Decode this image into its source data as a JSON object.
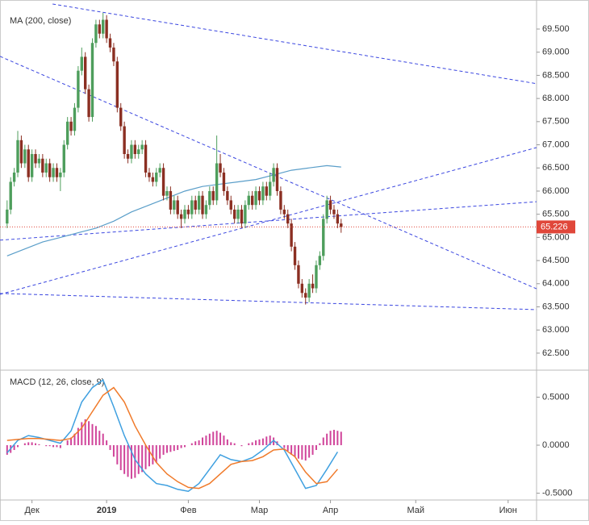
{
  "chart_data": [
    {
      "type": "candlestick",
      "title": "MA (200, close)",
      "up_color": "#4e9e5c",
      "down_color": "#8b2f22",
      "xlim": [
        -2,
        149
      ],
      "ylim": [
        62.15,
        70.04
      ],
      "yticks": [
        {
          "value": 62.5,
          "label": "62.500"
        },
        {
          "value": 63,
          "label": "63.000"
        },
        {
          "value": 63.5,
          "label": "63.500"
        },
        {
          "value": 64,
          "label": "64.000"
        },
        {
          "value": 64.5,
          "label": "64.500"
        },
        {
          "value": 65,
          "label": "65.000"
        },
        {
          "value": 65.5,
          "label": "65.500"
        },
        {
          "value": 66,
          "label": "66.000"
        },
        {
          "value": 66.5,
          "label": "66.500"
        },
        {
          "value": 67,
          "label": "67.000"
        },
        {
          "value": 67.5,
          "label": "67.500"
        },
        {
          "value": 68,
          "label": "68.000"
        },
        {
          "value": 68.5,
          "label": "68.500"
        },
        {
          "value": 69,
          "label": "69.000"
        },
        {
          "value": 69.5,
          "label": "69.500"
        }
      ],
      "ohlc": [
        [
          65.3,
          65.8,
          65.2,
          65.6
        ],
        [
          65.6,
          66.3,
          65.5,
          66.2
        ],
        [
          66.2,
          66.5,
          66.1,
          66.4
        ],
        [
          66.4,
          67.3,
          66.3,
          67.1
        ],
        [
          67.1,
          67.2,
          66.5,
          66.6
        ],
        [
          66.6,
          67.0,
          66.5,
          66.9
        ],
        [
          66.9,
          67.0,
          66.2,
          66.3
        ],
        [
          66.3,
          66.9,
          66.2,
          66.8
        ],
        [
          66.8,
          66.9,
          66.5,
          66.6
        ],
        [
          66.6,
          66.8,
          66.5,
          66.7
        ],
        [
          66.7,
          66.8,
          66.3,
          66.4
        ],
        [
          66.4,
          66.7,
          66.3,
          66.6
        ],
        [
          66.6,
          66.7,
          66.2,
          66.3
        ],
        [
          66.3,
          66.6,
          66.2,
          66.5
        ],
        [
          66.5,
          66.6,
          66.2,
          66.3
        ],
        [
          66.3,
          66.5,
          66.0,
          66.4
        ],
        [
          66.4,
          67.1,
          66.3,
          67.0
        ],
        [
          67.0,
          67.6,
          66.9,
          67.5
        ],
        [
          67.5,
          67.6,
          67.2,
          67.3
        ],
        [
          67.3,
          67.9,
          67.2,
          67.8
        ],
        [
          67.8,
          68.7,
          67.7,
          68.6
        ],
        [
          68.6,
          69.1,
          68.5,
          68.9
        ],
        [
          68.9,
          69.0,
          68.1,
          68.2
        ],
        [
          68.2,
          68.3,
          67.5,
          67.6
        ],
        [
          67.6,
          69.3,
          67.5,
          69.2
        ],
        [
          69.2,
          69.7,
          69.1,
          69.6
        ],
        [
          69.6,
          69.7,
          69.3,
          69.4
        ],
        [
          69.4,
          69.85,
          69.3,
          69.7
        ],
        [
          69.7,
          69.8,
          69.2,
          69.3
        ],
        [
          69.3,
          69.4,
          69.0,
          69.1
        ],
        [
          69.1,
          69.2,
          68.7,
          68.8
        ],
        [
          68.8,
          68.9,
          67.7,
          67.8
        ],
        [
          67.8,
          67.9,
          67.3,
          67.4
        ],
        [
          67.4,
          67.5,
          66.7,
          66.8
        ],
        [
          66.8,
          66.9,
          66.6,
          66.7
        ],
        [
          66.7,
          67.1,
          66.6,
          67.0
        ],
        [
          67.0,
          67.1,
          66.7,
          66.8
        ],
        [
          66.8,
          67.0,
          66.7,
          66.9
        ],
        [
          66.9,
          67.1,
          66.8,
          67.0
        ],
        [
          67.0,
          67.1,
          66.3,
          66.4
        ],
        [
          66.4,
          66.5,
          66.2,
          66.3
        ],
        [
          66.3,
          66.4,
          66.1,
          66.2
        ],
        [
          66.2,
          66.5,
          66.1,
          66.4
        ],
        [
          66.4,
          66.6,
          66.3,
          66.5
        ],
        [
          66.5,
          66.6,
          65.8,
          65.9
        ],
        [
          65.9,
          66.1,
          65.8,
          66.0
        ],
        [
          66.0,
          66.1,
          65.5,
          65.6
        ],
        [
          65.6,
          65.9,
          65.5,
          65.8
        ],
        [
          65.8,
          65.9,
          65.4,
          65.5
        ],
        [
          65.5,
          65.6,
          65.2,
          65.4
        ],
        [
          65.4,
          65.7,
          65.3,
          65.6
        ],
        [
          65.6,
          65.7,
          65.4,
          65.5
        ],
        [
          65.5,
          65.9,
          65.4,
          65.8
        ],
        [
          65.8,
          65.9,
          65.5,
          65.6
        ],
        [
          65.6,
          66.0,
          65.5,
          65.9
        ],
        [
          65.9,
          66.0,
          65.4,
          65.5
        ],
        [
          65.5,
          65.8,
          65.4,
          65.7
        ],
        [
          65.7,
          66.1,
          65.6,
          66.0
        ],
        [
          66.0,
          66.1,
          65.7,
          65.8
        ],
        [
          65.8,
          67.2,
          65.7,
          66.6
        ],
        [
          66.6,
          66.8,
          66.3,
          66.4
        ],
        [
          66.4,
          66.5,
          65.9,
          66.0
        ],
        [
          66.0,
          66.1,
          65.7,
          65.8
        ],
        [
          65.8,
          65.9,
          65.5,
          65.6
        ],
        [
          65.6,
          65.7,
          65.3,
          65.4
        ],
        [
          65.4,
          65.7,
          65.3,
          65.6
        ],
        [
          65.6,
          65.7,
          65.2,
          65.3
        ],
        [
          65.3,
          65.8,
          65.2,
          65.7
        ],
        [
          65.7,
          66.0,
          65.6,
          65.9
        ],
        [
          65.9,
          66.0,
          65.6,
          65.7
        ],
        [
          65.7,
          66.1,
          65.6,
          66.0
        ],
        [
          66.0,
          66.1,
          65.7,
          65.8
        ],
        [
          65.8,
          66.2,
          65.7,
          66.1
        ],
        [
          66.1,
          66.2,
          65.8,
          65.9
        ],
        [
          65.9,
          66.4,
          65.8,
          66.2
        ],
        [
          66.2,
          66.6,
          66.1,
          66.5
        ],
        [
          66.5,
          66.6,
          65.9,
          66.0
        ],
        [
          66.0,
          66.1,
          65.5,
          65.6
        ],
        [
          65.6,
          65.7,
          65.4,
          65.5
        ],
        [
          65.5,
          65.6,
          65.2,
          65.3
        ],
        [
          65.3,
          65.4,
          64.7,
          64.8
        ],
        [
          64.8,
          64.9,
          64.3,
          64.4
        ],
        [
          64.4,
          64.5,
          63.9,
          64.0
        ],
        [
          64.0,
          64.1,
          63.7,
          63.8
        ],
        [
          63.8,
          63.9,
          63.55,
          63.7
        ],
        [
          63.7,
          64.1,
          63.6,
          64.0
        ],
        [
          64.0,
          64.2,
          63.8,
          63.9
        ],
        [
          63.9,
          64.5,
          63.8,
          64.4
        ],
        [
          64.4,
          64.7,
          64.3,
          64.6
        ],
        [
          64.6,
          65.5,
          64.5,
          65.4
        ],
        [
          65.4,
          65.9,
          65.3,
          65.8
        ],
        [
          65.8,
          65.9,
          65.5,
          65.6
        ],
        [
          65.6,
          65.7,
          65.4,
          65.5
        ],
        [
          65.5,
          65.6,
          65.2,
          65.3
        ],
        [
          65.3,
          65.4,
          65.1,
          65.226
        ]
      ],
      "ma": {
        "color": "#5a9ec9",
        "x": [
          0,
          5,
          10,
          15,
          20,
          25,
          30,
          35,
          40,
          45,
          50,
          55,
          60,
          65,
          70,
          75,
          80,
          85,
          90,
          94
        ],
        "values": [
          64.6,
          64.75,
          64.9,
          65.0,
          65.1,
          65.2,
          65.35,
          65.55,
          65.7,
          65.85,
          66.0,
          66.1,
          66.15,
          66.2,
          66.25,
          66.35,
          66.45,
          66.5,
          66.55,
          66.52
        ]
      },
      "trendline_color": "#3a46e0",
      "trendlines": [
        {
          "x": [
            12.8,
            149
          ],
          "values": [
            70.04,
            68.32
          ]
        },
        {
          "x": [
            -2,
            149
          ],
          "values": [
            68.91,
            63.89
          ]
        },
        {
          "x": [
            -2,
            149
          ],
          "values": [
            64.94,
            65.77
          ]
        },
        {
          "x": [
            -2,
            149
          ],
          "values": [
            63.77,
            66.94
          ]
        },
        {
          "x": [
            -2,
            149
          ],
          "values": [
            63.79,
            63.44
          ]
        }
      ],
      "last_price_color": "#e0473a"
    },
    {
      "type": "macd",
      "title": "MACD (12, 26, close, 9)",
      "xlim": [
        -2,
        149
      ],
      "ylim": [
        -0.571,
        0.773
      ],
      "yticks": [
        {
          "value": -0.5,
          "label": "-0.5000"
        },
        {
          "value": 0,
          "label": "0.0000"
        },
        {
          "value": 0.5,
          "label": "0.5000"
        }
      ],
      "xticks": [
        {
          "value": 7,
          "label": "Дек"
        },
        {
          "value": 28,
          "label": "2019"
        },
        {
          "value": 51,
          "label": "Фев"
        },
        {
          "value": 71,
          "label": "Мар"
        },
        {
          "value": 91,
          "label": "Апр"
        },
        {
          "value": 115,
          "label": "Май"
        },
        {
          "value": 141,
          "label": "Июн"
        }
      ],
      "histogram": {
        "color": "#d0449a",
        "values": [
          -0.1,
          -0.08,
          -0.05,
          -0.02,
          0,
          0.02,
          0.03,
          0.03,
          0.02,
          0.01,
          0.0,
          -0.01,
          -0.01,
          -0.02,
          -0.02,
          -0.03,
          0.0,
          0.05,
          0.08,
          0.12,
          0.18,
          0.24,
          0.27,
          0.25,
          0.22,
          0.2,
          0.15,
          0.12,
          0.05,
          -0.05,
          -0.12,
          -0.2,
          -0.26,
          -0.3,
          -0.33,
          -0.35,
          -0.34,
          -0.3,
          -0.28,
          -0.25,
          -0.22,
          -0.2,
          -0.18,
          -0.14,
          -0.1,
          -0.08,
          -0.07,
          -0.06,
          -0.05,
          -0.03,
          -0.02,
          0.0,
          0.02,
          0.04,
          0.05,
          0.08,
          0.1,
          0.12,
          0.14,
          0.15,
          0.13,
          0.1,
          0.06,
          0.03,
          0.02,
          0.0,
          -0.01,
          0.0,
          0.02,
          0.03,
          0.05,
          0.06,
          0.07,
          0.09,
          0.1,
          0.08,
          0.04,
          0.0,
          -0.03,
          -0.06,
          -0.1,
          -0.12,
          -0.14,
          -0.15,
          -0.16,
          -0.13,
          -0.1,
          -0.05,
          0.02,
          0.08,
          0.12,
          0.15,
          0.16,
          0.15,
          0.14
        ]
      },
      "x": [
        0,
        3,
        6,
        9,
        12,
        15,
        18,
        21,
        24,
        27,
        30,
        33,
        36,
        39,
        42,
        45,
        48,
        51,
        54,
        57,
        60,
        63,
        66,
        69,
        72,
        75,
        78,
        81,
        84,
        87,
        90,
        93
      ],
      "series": [
        {
          "color": "#3fa0e0",
          "values": [
            -0.08,
            0.05,
            0.1,
            0.08,
            0.05,
            0.02,
            0.15,
            0.45,
            0.6,
            0.68,
            0.4,
            0.1,
            -0.15,
            -0.3,
            -0.4,
            -0.42,
            -0.46,
            -0.48,
            -0.4,
            -0.25,
            -0.1,
            -0.15,
            -0.17,
            -0.13,
            -0.05,
            0.05,
            -0.05,
            -0.25,
            -0.45,
            -0.42,
            -0.25,
            -0.07
          ]
        },
        {
          "color": "#f07a2a",
          "values": [
            0.05,
            0.06,
            0.07,
            0.07,
            0.06,
            0.05,
            0.07,
            0.18,
            0.35,
            0.52,
            0.6,
            0.45,
            0.2,
            0.0,
            -0.18,
            -0.3,
            -0.38,
            -0.44,
            -0.45,
            -0.4,
            -0.3,
            -0.2,
            -0.17,
            -0.16,
            -0.12,
            -0.05,
            -0.04,
            -0.12,
            -0.28,
            -0.4,
            -0.38,
            -0.25
          ]
        }
      ]
    }
  ]
}
